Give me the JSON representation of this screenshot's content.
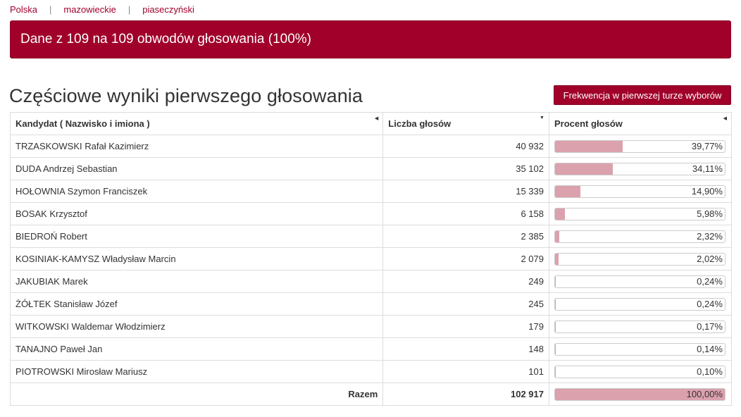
{
  "breadcrumb": [
    "Polska",
    "mazowieckie",
    "piaseczyński"
  ],
  "banner": {
    "text": "Dane z 109 na 109 obwodów głosowania (100%)"
  },
  "section": {
    "title": "Częściowe wyniki pierwszego głosowania",
    "turnout_button": "Frekwencja w pierwszej turze wyborów"
  },
  "colors": {
    "accent": "#a0002a",
    "bar_fill": "#dba1ad"
  },
  "table": {
    "headers": {
      "name": "Kandydat ( Nazwisko i imiona )",
      "votes": "Liczba głosów",
      "percent": "Procent głosów"
    },
    "rows": [
      {
        "name": "TRZASKOWSKI Rafał Kazimierz",
        "votes": "40 932",
        "percent": "39,77%",
        "share": 39.77
      },
      {
        "name": "DUDA Andrzej Sebastian",
        "votes": "35 102",
        "percent": "34,11%",
        "share": 34.11
      },
      {
        "name": "HOŁOWNIA Szymon Franciszek",
        "votes": "15 339",
        "percent": "14,90%",
        "share": 14.9
      },
      {
        "name": "BOSAK Krzysztof",
        "votes": "6 158",
        "percent": "5,98%",
        "share": 5.98
      },
      {
        "name": "BIEDROŃ Robert",
        "votes": "2 385",
        "percent": "2,32%",
        "share": 2.32
      },
      {
        "name": "KOSINIAK-KAMYSZ Władysław Marcin",
        "votes": "2 079",
        "percent": "2,02%",
        "share": 2.02
      },
      {
        "name": "JAKUBIAK Marek",
        "votes": "249",
        "percent": "0,24%",
        "share": 0.24
      },
      {
        "name": "ŻÓŁTEK Stanisław Józef",
        "votes": "245",
        "percent": "0,24%",
        "share": 0.24
      },
      {
        "name": "WITKOWSKI Waldemar Włodzimierz",
        "votes": "179",
        "percent": "0,17%",
        "share": 0.17
      },
      {
        "name": "TANAJNO Paweł Jan",
        "votes": "148",
        "percent": "0,14%",
        "share": 0.14
      },
      {
        "name": "PIOTROWSKI Mirosław Mariusz",
        "votes": "101",
        "percent": "0,10%",
        "share": 0.1
      }
    ],
    "total": {
      "label": "Razem",
      "votes": "102 917",
      "percent": "100,00%",
      "share": 100
    }
  }
}
